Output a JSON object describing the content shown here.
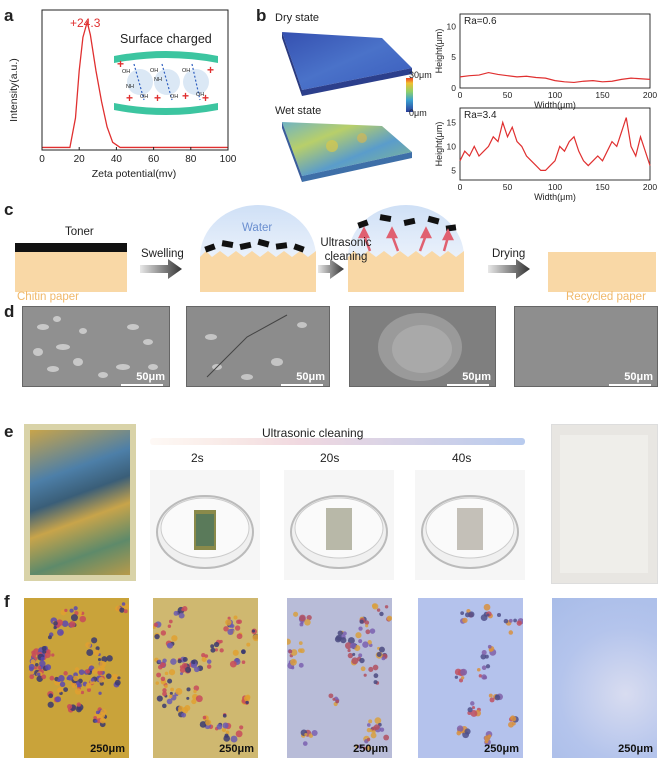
{
  "panel_a": {
    "label": "a",
    "title": "Surface charged",
    "peak_label": "+24.3",
    "xlabel": "Zeta potential(mv)",
    "ylabel": "Intensity(a.u.)",
    "xticks": [
      "0",
      "20",
      "40",
      "60",
      "80",
      "100"
    ],
    "chem_labels": [
      "OH",
      "OH",
      "OH",
      "OH",
      "OH",
      "NH",
      "NH",
      "OH"
    ],
    "line_color": "#e03030"
  },
  "panel_b": {
    "label": "b",
    "dry_label": "Dry state",
    "wet_label": "Wet state",
    "colorbar_max": "30μm",
    "colorbar_min": "0μm",
    "top_ra": "Ra=0.6",
    "bottom_ra": "Ra=3.4",
    "ylabel": "Height(μm)",
    "xlabel": "Width(μm)",
    "top_yticks": [
      "10",
      "5",
      "0"
    ],
    "bottom_yticks": [
      "15",
      "10",
      "5"
    ],
    "xticks": [
      "0",
      "50",
      "100",
      "150",
      "200"
    ],
    "line_color": "#e03030"
  },
  "panel_c": {
    "label": "c",
    "toner": "Toner",
    "water": "Water",
    "swelling": "Swelling",
    "ultrasonic": "Ultrasonic",
    "cleaning": "cleaning",
    "drying": "Drying",
    "chitin_paper": "Chitin paper",
    "recycled_paper": "Recycled paper",
    "paper_color": "#f9d8a6",
    "label_color": "#f0b86a"
  },
  "panel_d": {
    "label": "d",
    "scalebars": [
      "50μm",
      "50μm",
      "50μm",
      "50μm"
    ]
  },
  "panel_e": {
    "label": "e",
    "header": "Ultrasonic cleaning",
    "times": [
      "2s",
      "20s",
      "40s"
    ]
  },
  "panel_f": {
    "label": "f",
    "scalebars": [
      "250μm",
      "250μm",
      "250μm",
      "250μm",
      "250μm"
    ]
  },
  "chart_data": [
    {
      "type": "line",
      "title": "Surface charged",
      "xlabel": "Zeta potential(mv)",
      "ylabel": "Intensity(a.u.)",
      "xlim": [
        0,
        100
      ],
      "x": [
        0,
        15,
        18,
        20,
        22,
        24.3,
        26,
        29,
        32,
        35,
        38,
        42,
        100
      ],
      "y": [
        0.02,
        0.02,
        0.25,
        0.62,
        0.88,
        1.0,
        0.9,
        0.62,
        0.38,
        0.18,
        0.06,
        0.02,
        0.02
      ],
      "annotations": [
        "+24.3"
      ]
    },
    {
      "type": "line",
      "label": "Ra=0.6",
      "xlabel": "Width(μm)",
      "ylabel": "Height(μm)",
      "xlim": [
        0,
        200
      ],
      "ylim": [
        0,
        12
      ],
      "x": [
        0,
        10,
        20,
        30,
        40,
        50,
        60,
        70,
        80,
        90,
        100,
        110,
        120,
        130,
        140,
        150,
        160,
        170,
        180,
        190,
        200
      ],
      "y": [
        1.8,
        2.0,
        2.1,
        2.5,
        2.2,
        2.0,
        1.8,
        1.9,
        1.7,
        1.6,
        1.2,
        1.0,
        0.9,
        1.1,
        1.2,
        1.0,
        1.1,
        1.4,
        1.6,
        1.5,
        1.4
      ]
    },
    {
      "type": "line",
      "label": "Ra=3.4",
      "xlabel": "Width(μm)",
      "ylabel": "Height(μm)",
      "xlim": [
        0,
        200
      ],
      "ylim": [
        3,
        18
      ],
      "x": [
        0,
        5,
        10,
        15,
        20,
        25,
        30,
        35,
        40,
        45,
        50,
        55,
        60,
        65,
        70,
        75,
        80,
        85,
        90,
        95,
        100,
        105,
        110,
        115,
        120,
        125,
        130,
        135,
        140,
        145,
        150,
        155,
        160,
        165,
        170,
        175,
        180,
        185,
        190,
        195,
        200
      ],
      "y": [
        7,
        9,
        8,
        10,
        8,
        9,
        10,
        12,
        11,
        15,
        12,
        14,
        11,
        10,
        8,
        7,
        6,
        5,
        5,
        6,
        7,
        10,
        9,
        11,
        12,
        9,
        7,
        6,
        7,
        8,
        7,
        9,
        11,
        10,
        13,
        16,
        10,
        8,
        12,
        9,
        6
      ]
    }
  ]
}
